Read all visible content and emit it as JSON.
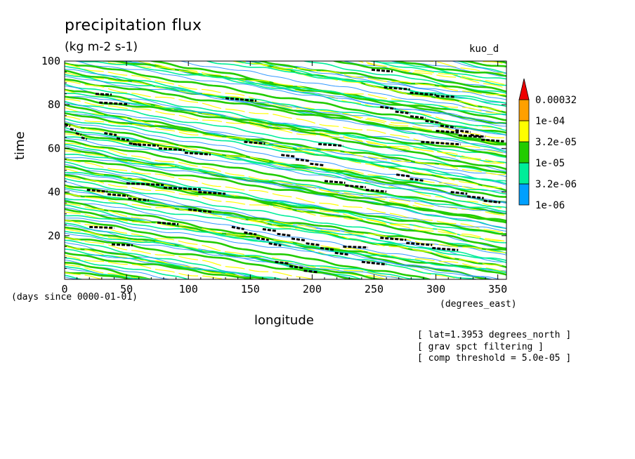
{
  "chart_data": {
    "type": "heatmap",
    "title": "precipitation flux",
    "units": "(kg m-2 s-1)",
    "model_label": "kuo_d",
    "xlabel": "longitude",
    "ylabel": "time",
    "x_units_label": "(degrees_east)",
    "y_units_label": "(days since 0000-01-01)",
    "xlim": [
      0,
      357
    ],
    "ylim": [
      0,
      100
    ],
    "x_ticks": [
      0,
      50,
      100,
      150,
      200,
      250,
      300,
      350
    ],
    "y_ticks": [
      20,
      40,
      60,
      80,
      100
    ],
    "grid": false,
    "legend": {
      "placement": "right",
      "levels": [
        "1e-06",
        "3.2e-06",
        "1e-05",
        "3.2e-05",
        "1e-04",
        "0.00032"
      ],
      "colors": [
        "#00a0ff",
        "#00ee99",
        "#22cc00",
        "#ffff00",
        "#ffa000",
        "#ee0000"
      ]
    },
    "contour_bands": {
      "colors": [
        "#22cc00",
        "#ffff00",
        "#00ee99",
        "#3399ff"
      ]
    },
    "high_value_streaks": {
      "color": "#000000",
      "segments": [
        {
          "lon0": 0,
          "lon1": 18,
          "t0": 71,
          "t1": 63
        },
        {
          "lon0": 25,
          "lon1": 38,
          "t0": 85,
          "t1": 84
        },
        {
          "lon0": 28,
          "lon1": 52,
          "t0": 81,
          "t1": 79
        },
        {
          "lon0": 32,
          "lon1": 62,
          "t0": 67,
          "t1": 60
        },
        {
          "lon0": 55,
          "lon1": 118,
          "t0": 62,
          "t1": 56
        },
        {
          "lon0": 50,
          "lon1": 110,
          "t0": 44,
          "t1": 40
        },
        {
          "lon0": 18,
          "lon1": 68,
          "t0": 41,
          "t1": 35
        },
        {
          "lon0": 108,
          "lon1": 130,
          "t0": 40,
          "t1": 38
        },
        {
          "lon0": 20,
          "lon1": 40,
          "t0": 24,
          "t1": 23
        },
        {
          "lon0": 38,
          "lon1": 55,
          "t0": 16,
          "t1": 15
        },
        {
          "lon0": 75,
          "lon1": 92,
          "t0": 26,
          "t1": 24
        },
        {
          "lon0": 100,
          "lon1": 120,
          "t0": 32,
          "t1": 29
        },
        {
          "lon0": 130,
          "lon1": 155,
          "t0": 83,
          "t1": 80
        },
        {
          "lon0": 145,
          "lon1": 162,
          "t0": 63,
          "t1": 61
        },
        {
          "lon0": 135,
          "lon1": 175,
          "t0": 24,
          "t1": 14
        },
        {
          "lon0": 160,
          "lon1": 230,
          "t0": 23,
          "t1": 10
        },
        {
          "lon0": 175,
          "lon1": 210,
          "t0": 57,
          "t1": 51
        },
        {
          "lon0": 205,
          "lon1": 225,
          "t0": 62,
          "t1": 60
        },
        {
          "lon0": 210,
          "lon1": 260,
          "t0": 45,
          "t1": 39
        },
        {
          "lon0": 170,
          "lon1": 205,
          "t0": 8,
          "t1": 2
        },
        {
          "lon0": 240,
          "lon1": 260,
          "t0": 8,
          "t1": 5
        },
        {
          "lon0": 248,
          "lon1": 265,
          "t0": 96,
          "t1": 94
        },
        {
          "lon0": 258,
          "lon1": 300,
          "t0": 88,
          "t1": 83
        },
        {
          "lon0": 255,
          "lon1": 340,
          "t0": 79,
          "t1": 64
        },
        {
          "lon0": 300,
          "lon1": 355,
          "t0": 68,
          "t1": 62
        },
        {
          "lon0": 288,
          "lon1": 320,
          "t0": 63,
          "t1": 60
        },
        {
          "lon0": 268,
          "lon1": 290,
          "t0": 48,
          "t1": 44
        },
        {
          "lon0": 312,
          "lon1": 352,
          "t0": 40,
          "t1": 34
        },
        {
          "lon0": 255,
          "lon1": 318,
          "t0": 19,
          "t1": 12
        },
        {
          "lon0": 225,
          "lon1": 245,
          "t0": 15,
          "t1": 14
        },
        {
          "lon0": 300,
          "lon1": 315,
          "t0": 84,
          "t1": 83
        }
      ]
    }
  },
  "annotations": [
    "[ lat=1.3953 degrees_north ]",
    "[ grav spct filtering ]",
    "[ comp threshold = 5.0e-05 ]"
  ]
}
